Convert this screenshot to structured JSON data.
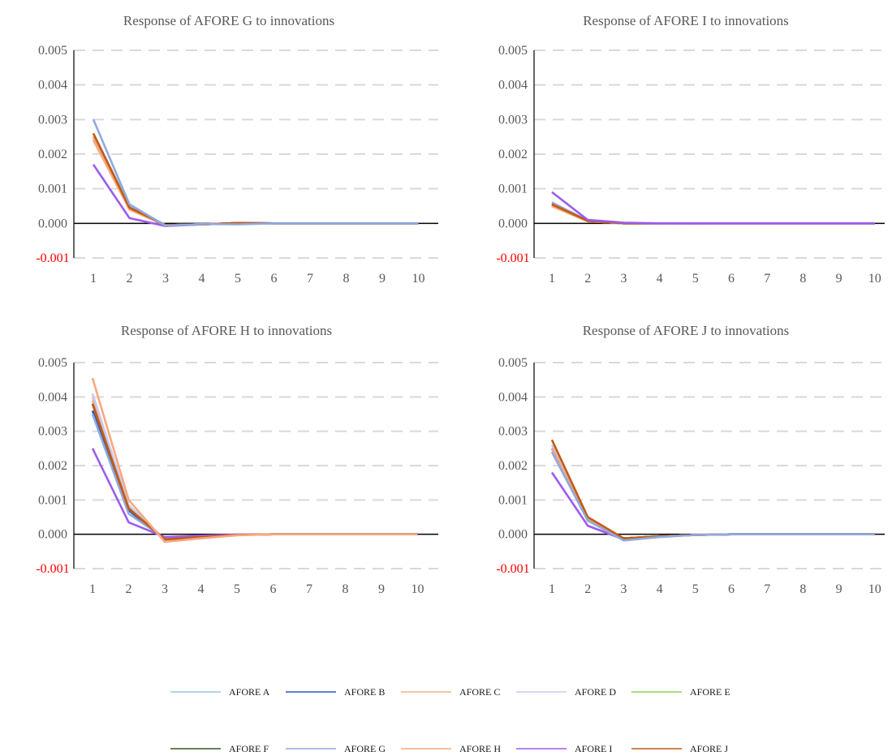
{
  "chart_data": [
    {
      "type": "line",
      "title": "Response of AFORE G to innovations",
      "x": [
        1,
        2,
        3,
        4,
        5,
        6,
        7,
        8,
        9,
        10
      ],
      "ylim": [
        -0.001,
        0.005
      ],
      "yticks": [
        "0.005",
        "0.004",
        "0.003",
        "0.002",
        "0.001",
        "0.000",
        "-0.001"
      ],
      "grid": true,
      "series": [
        {
          "name": "AFORE A",
          "color": "#9dc3e6",
          "values": [
            0.0026,
            0.0005,
            -5e-05,
            -3e-05,
            1e-05,
            0,
            0,
            0,
            0,
            0
          ]
        },
        {
          "name": "AFORE B",
          "color": "#2f55c4",
          "values": [
            0.0025,
            0.00045,
            -5e-05,
            -3e-05,
            1e-05,
            0,
            0,
            0,
            0,
            0
          ]
        },
        {
          "name": "AFORE C",
          "color": "#f4b183",
          "values": [
            0.0024,
            0.0004,
            -6e-05,
            -3e-05,
            1e-05,
            0,
            0,
            0,
            0,
            0
          ]
        },
        {
          "name": "AFORE D",
          "color": "#c9c9f0",
          "values": [
            0.0025,
            0.00045,
            -5e-05,
            -3e-05,
            1e-05,
            0,
            0,
            0,
            0,
            0
          ]
        },
        {
          "name": "AFORE E",
          "color": "#92d050",
          "values": [
            0.0025,
            0.00045,
            -5e-05,
            -3e-05,
            1e-05,
            0,
            0,
            0,
            0,
            0
          ]
        },
        {
          "name": "AFORE F",
          "color": "#375623",
          "values": [
            0.0025,
            0.00045,
            -5e-05,
            -3e-05,
            1e-05,
            0,
            0,
            0,
            0,
            0
          ]
        },
        {
          "name": "AFORE H",
          "color": "#f8a77e",
          "values": [
            0.0025,
            0.0004,
            -5e-05,
            -3e-05,
            1e-05,
            0,
            0,
            0,
            0,
            0
          ]
        },
        {
          "name": "AFORE I",
          "color": "#9b5cf0",
          "values": [
            0.0017,
            0.00015,
            -8e-05,
            -3e-05,
            1e-05,
            0,
            0,
            0,
            0,
            0
          ]
        },
        {
          "name": "AFORE J",
          "color": "#c55a11",
          "values": [
            0.0026,
            0.00045,
            -5e-05,
            -3e-05,
            1e-05,
            0,
            0,
            0,
            0,
            0
          ]
        },
        {
          "name": "AFORE G",
          "color": "#8faadc",
          "values": [
            0.003,
            0.00055,
            -7e-05,
            -2e-05,
            -3e-05,
            0,
            0,
            0,
            0,
            0
          ]
        }
      ]
    },
    {
      "type": "line",
      "title": "Response of AFORE I to innovations",
      "x": [
        1,
        2,
        3,
        4,
        5,
        6,
        7,
        8,
        9,
        10
      ],
      "ylim": [
        -0.001,
        0.005
      ],
      "yticks": [
        "0.005",
        "0.004",
        "0.003",
        "0.002",
        "0.001",
        "0.000",
        "-0.001"
      ],
      "grid": true,
      "series": [
        {
          "name": "AFORE A",
          "color": "#9dc3e6",
          "values": [
            0.0006,
            8e-05,
            0,
            0,
            0,
            0,
            0,
            0,
            0,
            0
          ]
        },
        {
          "name": "AFORE B",
          "color": "#2f55c4",
          "values": [
            0.00055,
            7e-05,
            0,
            0,
            0,
            0,
            0,
            0,
            0,
            0
          ]
        },
        {
          "name": "AFORE C",
          "color": "#f4b183",
          "values": [
            0.0005,
            6e-05,
            0,
            0,
            0,
            0,
            0,
            0,
            0,
            0
          ]
        },
        {
          "name": "AFORE D",
          "color": "#c9c9f0",
          "values": [
            0.0006,
            8e-05,
            0,
            0,
            0,
            0,
            0,
            0,
            0,
            0
          ]
        },
        {
          "name": "AFORE E",
          "color": "#92d050",
          "values": [
            0.00055,
            7e-05,
            0,
            0,
            0,
            0,
            0,
            0,
            0,
            0
          ]
        },
        {
          "name": "AFORE F",
          "color": "#375623",
          "values": [
            0.00055,
            7e-05,
            0,
            0,
            0,
            0,
            0,
            0,
            0,
            0
          ]
        },
        {
          "name": "AFORE G",
          "color": "#8faadc",
          "values": [
            0.0006,
            8e-05,
            0,
            0,
            -1e-05,
            0,
            0,
            0,
            0,
            0
          ]
        },
        {
          "name": "AFORE H",
          "color": "#f8a77e",
          "values": [
            0.0005,
            6e-05,
            0,
            0,
            0,
            0,
            0,
            0,
            0,
            0
          ]
        },
        {
          "name": "AFORE J",
          "color": "#c55a11",
          "values": [
            0.00055,
            7e-05,
            0,
            0,
            0,
            0,
            0,
            0,
            0,
            0
          ]
        },
        {
          "name": "AFORE I",
          "color": "#9b5cf0",
          "values": [
            0.0009,
            0.0001,
            2e-05,
            0,
            0,
            0,
            0,
            0,
            0,
            0
          ]
        }
      ]
    },
    {
      "type": "line",
      "title": "Response of AFORE H to innovations",
      "x": [
        1,
        2,
        3,
        4,
        5,
        6,
        7,
        8,
        9,
        10
      ],
      "ylim": [
        -0.001,
        0.005
      ],
      "yticks": [
        "0.005",
        "0.004",
        "0.003",
        "0.002",
        "0.001",
        "0.000",
        "-0.001"
      ],
      "grid": true,
      "series": [
        {
          "name": "AFORE A",
          "color": "#9dc3e6",
          "values": [
            0.0039,
            0.0008,
            -0.00015,
            -8e-05,
            -2e-05,
            0,
            0,
            0,
            0,
            0
          ]
        },
        {
          "name": "AFORE B",
          "color": "#2f55c4",
          "values": [
            0.0036,
            0.0007,
            -0.00015,
            -8e-05,
            -2e-05,
            0,
            0,
            0,
            0,
            0
          ]
        },
        {
          "name": "AFORE C",
          "color": "#f4b183",
          "values": [
            0.004,
            0.0008,
            -0.00016,
            -8e-05,
            -2e-05,
            0,
            0,
            0,
            0,
            0
          ]
        },
        {
          "name": "AFORE D",
          "color": "#c9c9f0",
          "values": [
            0.0041,
            0.00085,
            -0.00015,
            -8e-05,
            -2e-05,
            0,
            0,
            0,
            0,
            0
          ]
        },
        {
          "name": "AFORE E",
          "color": "#92d050",
          "values": [
            0.0038,
            0.00075,
            -0.00015,
            -8e-05,
            -2e-05,
            0,
            0,
            0,
            0,
            0
          ]
        },
        {
          "name": "AFORE F",
          "color": "#375623",
          "values": [
            0.0038,
            0.00075,
            -0.00015,
            -8e-05,
            -2e-05,
            0,
            0,
            0,
            0,
            0
          ]
        },
        {
          "name": "AFORE G",
          "color": "#8faadc",
          "values": [
            0.0035,
            0.0006,
            -0.00012,
            -6e-05,
            -2e-05,
            0,
            0,
            0,
            0,
            0
          ]
        },
        {
          "name": "AFORE I",
          "color": "#9b5cf0",
          "values": [
            0.0025,
            0.00035,
            -8e-05,
            -4e-05,
            -1e-05,
            0,
            0,
            0,
            0,
            0
          ]
        },
        {
          "name": "AFORE J",
          "color": "#c55a11",
          "values": [
            0.0038,
            0.00075,
            -0.00015,
            -8e-05,
            -2e-05,
            0,
            0,
            0,
            0,
            0
          ]
        },
        {
          "name": "AFORE H",
          "color": "#f8a77e",
          "values": [
            0.00455,
            0.001,
            -0.00022,
            -0.00012,
            -3e-05,
            0,
            0,
            0,
            0,
            0
          ]
        }
      ]
    },
    {
      "type": "line",
      "title": "Response of AFORE J to innovations",
      "x": [
        1,
        2,
        3,
        4,
        5,
        6,
        7,
        8,
        9,
        10
      ],
      "ylim": [
        -0.001,
        0.005
      ],
      "yticks": [
        "0.005",
        "0.004",
        "0.003",
        "0.002",
        "0.001",
        "0.000",
        "-0.001"
      ],
      "grid": true,
      "series": [
        {
          "name": "AFORE A",
          "color": "#9dc3e6",
          "values": [
            0.0026,
            0.00045,
            -0.00012,
            -6e-05,
            -2e-05,
            0,
            0,
            0,
            0,
            0
          ]
        },
        {
          "name": "AFORE B",
          "color": "#2f55c4",
          "values": [
            0.0025,
            0.0004,
            -0.00012,
            -6e-05,
            -2e-05,
            0,
            0,
            0,
            0,
            0
          ]
        },
        {
          "name": "AFORE C",
          "color": "#f4b183",
          "values": [
            0.0024,
            0.0004,
            -0.00013,
            -6e-05,
            -2e-05,
            0,
            0,
            0,
            0,
            0
          ]
        },
        {
          "name": "AFORE D",
          "color": "#c9c9f0",
          "values": [
            0.0026,
            0.00045,
            -0.00012,
            -6e-05,
            -2e-05,
            0,
            0,
            0,
            0,
            0
          ]
        },
        {
          "name": "AFORE E",
          "color": "#92d050",
          "values": [
            0.0025,
            0.0004,
            -0.00012,
            -6e-05,
            -2e-05,
            0,
            0,
            0,
            0,
            0
          ]
        },
        {
          "name": "AFORE F",
          "color": "#375623",
          "values": [
            0.0025,
            0.0004,
            -0.00012,
            -6e-05,
            -2e-05,
            0,
            0,
            0,
            0,
            0
          ]
        },
        {
          "name": "AFORE H",
          "color": "#f8a77e",
          "values": [
            0.0025,
            0.00042,
            -0.00012,
            -6e-05,
            -2e-05,
            0,
            0,
            0,
            0,
            0
          ]
        },
        {
          "name": "AFORE I",
          "color": "#9b5cf0",
          "values": [
            0.0018,
            0.00025,
            -0.00015,
            -6e-05,
            -2e-05,
            0,
            0,
            0,
            0,
            0
          ]
        },
        {
          "name": "AFORE J",
          "color": "#c55a11",
          "values": [
            0.00275,
            0.0005,
            -0.00012,
            -6e-05,
            -2e-05,
            0,
            0,
            0,
            0,
            0
          ]
        },
        {
          "name": "AFORE G",
          "color": "#8faadc",
          "values": [
            0.0024,
            0.0004,
            -0.00018,
            -8e-05,
            -2e-05,
            0,
            0,
            0,
            0,
            0
          ]
        }
      ]
    }
  ],
  "legend": {
    "placement": "bottom",
    "items": [
      {
        "name": "AFORE A",
        "color": "#9dc3e6"
      },
      {
        "name": "AFORE B",
        "color": "#2f55c4"
      },
      {
        "name": "AFORE C",
        "color": "#f4b183"
      },
      {
        "name": "AFORE D",
        "color": "#c9c9f0"
      },
      {
        "name": "AFORE E",
        "color": "#92d050"
      },
      {
        "name": "AFORE F",
        "color": "#375623"
      },
      {
        "name": "AFORE G",
        "color": "#8faadc"
      },
      {
        "name": "AFORE H",
        "color": "#f8a77e"
      },
      {
        "name": "AFORE I",
        "color": "#9b5cf0"
      },
      {
        "name": "AFORE J",
        "color": "#c55a11"
      }
    ]
  },
  "colors": {
    "text": "#595959",
    "negative_tick": "#ff0000",
    "axis": "#000000",
    "grid": "#d9d9d9"
  }
}
